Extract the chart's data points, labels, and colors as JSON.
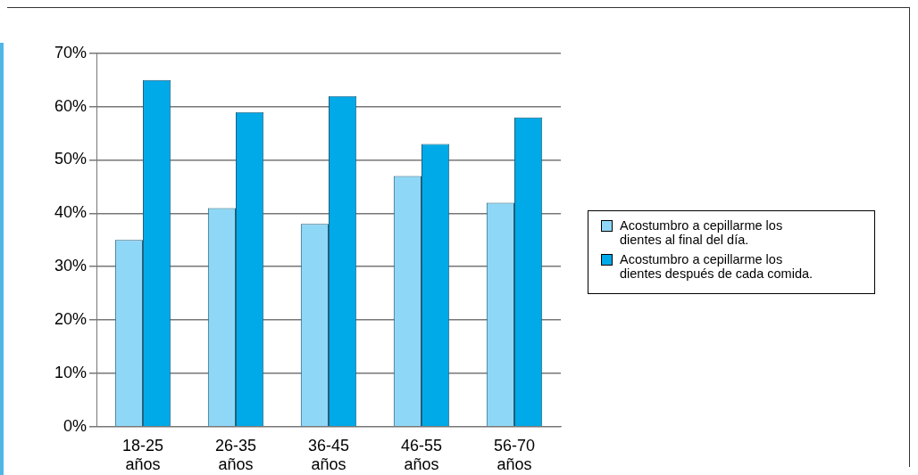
{
  "chart_data": {
    "type": "bar",
    "categories": [
      "18-25 años",
      "26-35 años",
      "36-45 años",
      "46-55 años",
      "56-70 años"
    ],
    "series": [
      {
        "name": "Acostumbro a cepillarme los dientes al final del día.",
        "color": "#8fd7f6",
        "values": [
          35,
          41,
          38,
          47,
          42
        ]
      },
      {
        "name": "Acostumbro a cepillarme los dientes después de cada comida.",
        "color": "#00a9e8",
        "values": [
          65,
          59,
          62,
          53,
          58
        ]
      }
    ],
    "ylim": [
      0,
      70
    ],
    "yticks": [
      {
        "value": 0,
        "label": "0%"
      },
      {
        "value": 10,
        "label": "10%"
      },
      {
        "value": 20,
        "label": "20%"
      },
      {
        "value": 30,
        "label": "30%"
      },
      {
        "value": 40,
        "label": "40%"
      },
      {
        "value": 50,
        "label": "50%"
      },
      {
        "value": 60,
        "label": "60%"
      },
      {
        "value": 70,
        "label": "70%"
      }
    ],
    "grid": "y",
    "legend": "right"
  }
}
